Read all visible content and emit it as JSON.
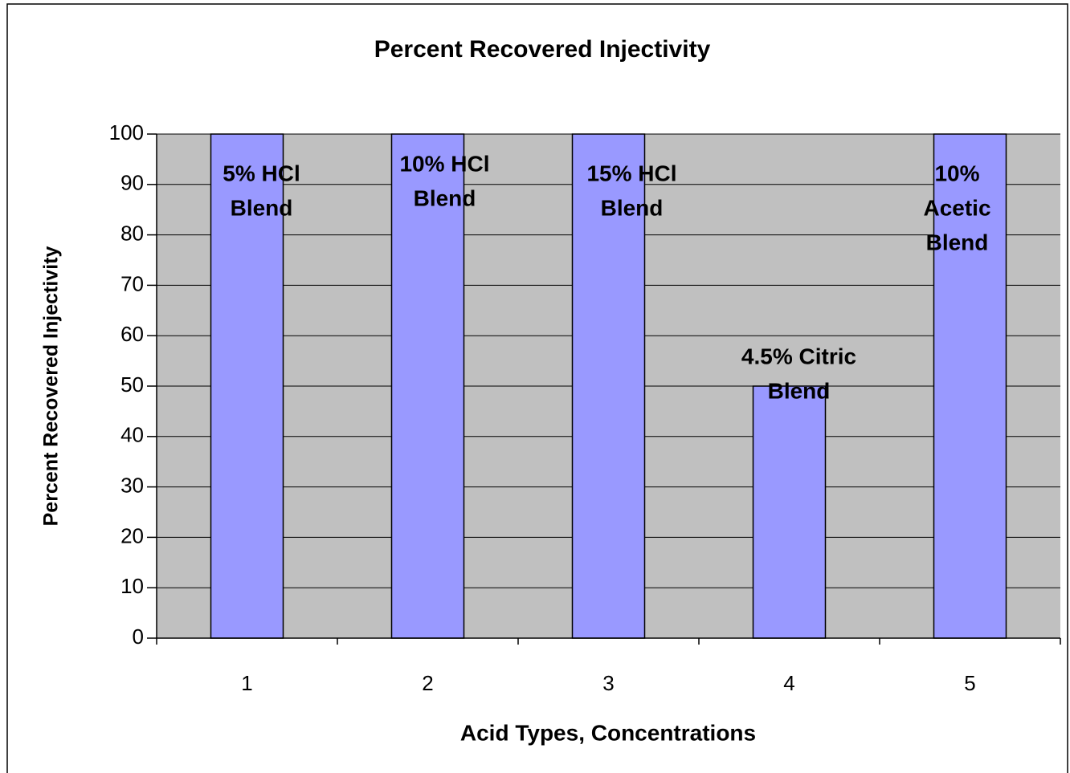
{
  "chart_data": {
    "type": "bar",
    "title": "Percent Recovered Injectivity",
    "x_label": "Acid Types, Concentrations",
    "y_label": "Percent Recovered Injectivity",
    "categories": [
      "1",
      "2",
      "3",
      "4",
      "5"
    ],
    "values": [
      100,
      100,
      100,
      50,
      100
    ],
    "color": "#9999ff",
    "plot_background": "#c0c0c0",
    "ylim": [
      0,
      100
    ],
    "yticks": [
      0,
      10,
      20,
      30,
      40,
      50,
      60,
      70,
      80,
      90,
      100
    ],
    "grid": true,
    "annotations": [
      [
        "5% HCl",
        "Blend"
      ],
      [
        "10% HCl",
        "Blend"
      ],
      [
        "15% HCl",
        "Blend"
      ],
      [
        "4.5% Citric",
        "Blend"
      ],
      [
        "10%",
        "Acetic",
        "Blend"
      ]
    ]
  }
}
